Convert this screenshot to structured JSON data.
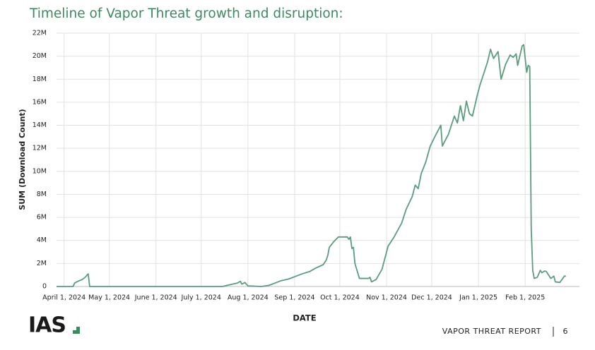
{
  "chart_data": {
    "type": "line",
    "title": "Timeline of Vapor Threat growth and disruption:",
    "x_label": "DATE",
    "y_label": "SUM (Download Count)",
    "xlim": [
      "2024-03-27",
      "2025-03-09"
    ],
    "xticks": [
      {
        "value": "2024-04-01",
        "label": "April 1, 2024"
      },
      {
        "value": "2024-05-01",
        "label": "May 1, 2024"
      },
      {
        "value": "2024-06-01",
        "label": "June 1, 2024"
      },
      {
        "value": "2024-07-01",
        "label": "July 1, 2024"
      },
      {
        "value": "2024-08-01",
        "label": "Aug 1, 2024"
      },
      {
        "value": "2024-09-01",
        "label": "Sep 1, 2024"
      },
      {
        "value": "2024-10-01",
        "label": "Oct 1, 2024"
      },
      {
        "value": "2024-11-01",
        "label": "Nov 1, 2024"
      },
      {
        "value": "2024-12-01",
        "label": "Dec 1, 2024"
      },
      {
        "value": "2025-01-01",
        "label": "Jan 1, 2025"
      },
      {
        "value": "2025-02-01",
        "label": "Feb 1, 2025"
      }
    ],
    "ylim": [
      0,
      22000000
    ],
    "yticks": [
      0,
      {
        "value": 2000000,
        "label": "2M"
      },
      {
        "value": 4000000,
        "label": "4M"
      },
      {
        "value": 6000000,
        "label": "6M"
      },
      {
        "value": 8000000,
        "label": "8M"
      },
      {
        "value": 10000000,
        "label": "10M"
      },
      {
        "value": 12000000,
        "label": "12M"
      },
      {
        "value": 14000000,
        "label": "14M"
      },
      {
        "value": 16000000,
        "label": "16M"
      },
      {
        "value": 18000000,
        "label": "18M"
      },
      {
        "value": 20000000,
        "label": "20M"
      },
      {
        "value": 22000000,
        "label": "22M"
      }
    ],
    "grid": true,
    "x": [
      "2024-03-27",
      "2024-04-07",
      "2024-04-08",
      "2024-04-11",
      "2024-04-13",
      "2024-04-15",
      "2024-04-17",
      "2024-04-18",
      "2024-07-15",
      "2024-07-20",
      "2024-07-25",
      "2024-07-27",
      "2024-07-28",
      "2024-07-30",
      "2024-08-01",
      "2024-08-10",
      "2024-08-15",
      "2024-08-20",
      "2024-08-23",
      "2024-08-28",
      "2024-09-02",
      "2024-09-06",
      "2024-09-11",
      "2024-09-15",
      "2024-09-20",
      "2024-09-22",
      "2024-09-23",
      "2024-09-24",
      "2024-09-27",
      "2024-09-30",
      "2024-10-06",
      "2024-10-07",
      "2024-10-08",
      "2024-10-09",
      "2024-10-10",
      "2024-10-11",
      "2024-10-14",
      "2024-10-20",
      "2024-10-21",
      "2024-10-22",
      "2024-10-25",
      "2024-10-29",
      "2024-10-31",
      "2024-11-02",
      "2024-11-06",
      "2024-11-11",
      "2024-11-14",
      "2024-11-18",
      "2024-11-20",
      "2024-11-22",
      "2024-11-24",
      "2024-11-27",
      "2024-11-30",
      "2024-12-03",
      "2024-12-05",
      "2024-12-07",
      "2024-12-08",
      "2024-12-12",
      "2024-12-16",
      "2024-12-18",
      "2024-12-20",
      "2024-12-22",
      "2024-12-24",
      "2024-12-26",
      "2024-12-28",
      "2024-12-31",
      "2025-01-02",
      "2025-01-04",
      "2025-01-07",
      "2025-01-09",
      "2025-01-11",
      "2025-01-14",
      "2025-01-16",
      "2025-01-19",
      "2025-01-22",
      "2025-01-24",
      "2025-01-26",
      "2025-01-27",
      "2025-01-30",
      "2025-01-31",
      "2025-02-02",
      "2025-02-03",
      "2025-02-04",
      "2025-02-05",
      "2025-02-06",
      "2025-02-07",
      "2025-02-09",
      "2025-02-11",
      "2025-02-12",
      "2025-02-14",
      "2025-02-15",
      "2025-02-18",
      "2025-02-20",
      "2025-02-21",
      "2025-02-24",
      "2025-02-27",
      "2025-02-28"
    ],
    "series": [
      {
        "name": "SUM (Download Count)",
        "color": "#5a9c7e",
        "values": [
          0,
          0,
          300000,
          500000,
          600000,
          800000,
          1100000,
          0,
          0,
          150000,
          300000,
          450000,
          200000,
          350000,
          50000,
          0,
          100000,
          350000,
          500000,
          650000,
          900000,
          1100000,
          1300000,
          1600000,
          1900000,
          2300000,
          2700000,
          3400000,
          3900000,
          4300000,
          4300000,
          4100000,
          4300000,
          3300000,
          3400000,
          2000000,
          700000,
          700000,
          800000,
          400000,
          600000,
          1500000,
          2500000,
          3500000,
          4300000,
          5500000,
          6700000,
          7800000,
          8800000,
          8500000,
          9800000,
          10800000,
          12200000,
          13000000,
          13500000,
          14000000,
          12200000,
          13200000,
          14800000,
          14200000,
          15700000,
          14400000,
          16100000,
          15000000,
          14800000,
          16500000,
          17500000,
          18300000,
          19500000,
          20600000,
          19800000,
          20400000,
          18000000,
          19300000,
          20100000,
          19900000,
          20200000,
          19200000,
          20900000,
          21000000,
          18600000,
          19200000,
          19100000,
          5000000,
          1400000,
          700000,
          800000,
          1400000,
          1200000,
          1350000,
          1300000,
          700000,
          900000,
          400000,
          350000,
          900000,
          900000
        ]
      }
    ]
  },
  "footer": {
    "logo": "IAS",
    "report": "VAPOR THREAT REPORT",
    "page": 6
  }
}
